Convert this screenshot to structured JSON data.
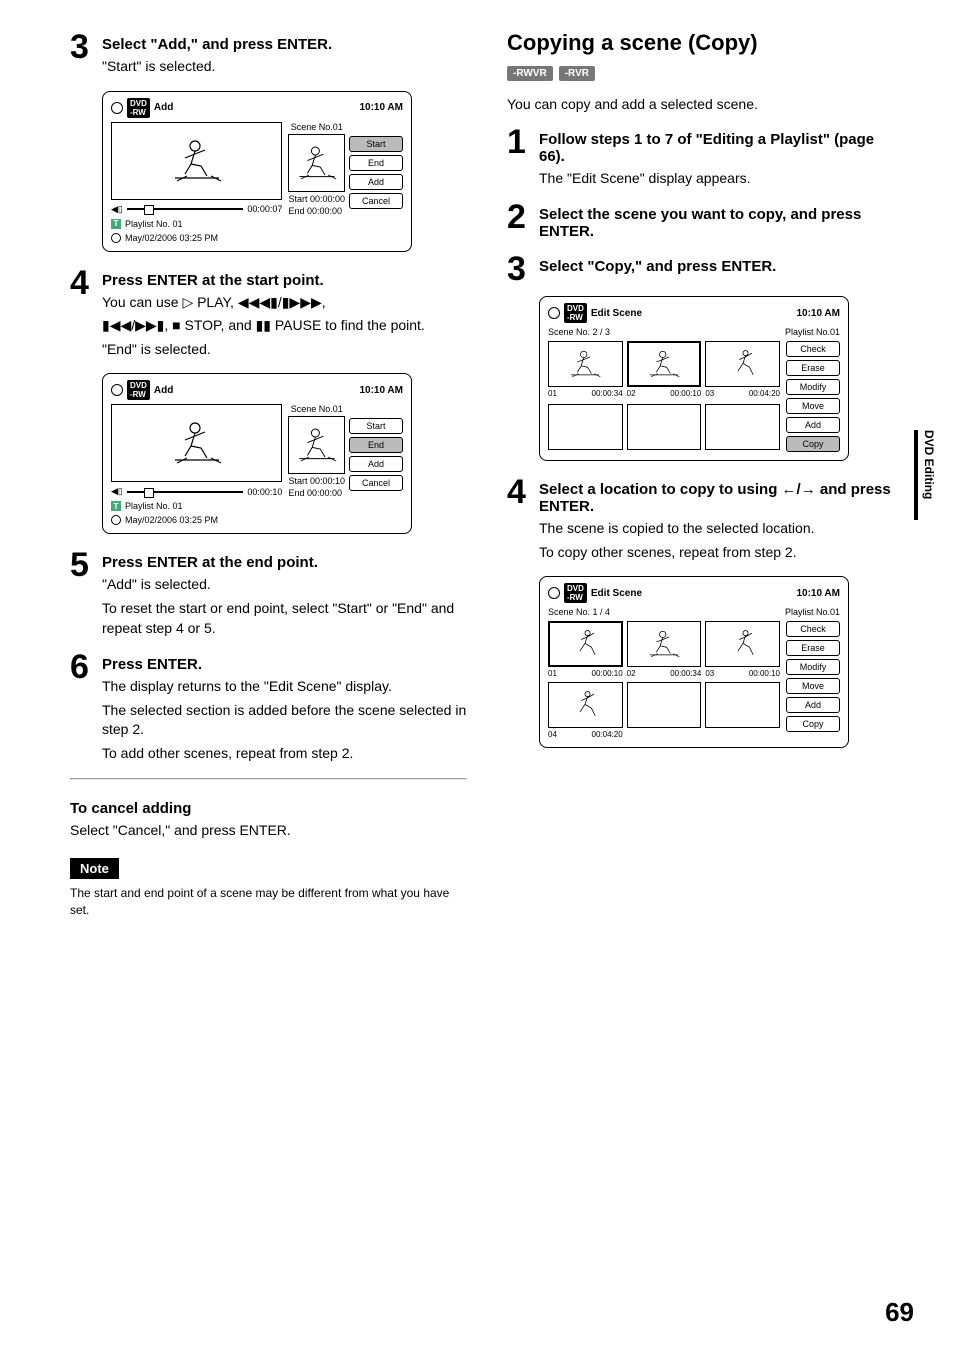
{
  "page_number": "69",
  "side_tab": "DVD Editing",
  "left": {
    "step3": {
      "title": "Select \"Add,\" and press ENTER.",
      "text": "\"Start\" is selected."
    },
    "osd1": {
      "title": "Add",
      "time": "10:10 AM",
      "scene_label": "Scene No.01",
      "start_label": "Start 00:00:00",
      "end_label": "End   00:00:00",
      "slider_time": "00:00:07",
      "playlist": "Playlist No. 01",
      "date": "May/02/2006  03:25  PM",
      "btn_start": "Start",
      "btn_end": "End",
      "btn_add": "Add",
      "btn_cancel": "Cancel"
    },
    "step4": {
      "title": "Press ENTER at the start point.",
      "line1": "You can use ▷ PLAY, ◀◀◀▮/▮▶▶▶,",
      "line2": "▮◀◀/▶▶▮, ■ STOP, and ▮▮ PAUSE to find the point.",
      "line3": "\"End\" is selected."
    },
    "osd2": {
      "title": "Add",
      "time": "10:10 AM",
      "scene_label": "Scene No.01",
      "start_label": "Start 00:00:10",
      "end_label": "End   00:00:00",
      "slider_time": "00:00:10",
      "playlist": "Playlist No. 01",
      "date": "May/02/2006  03:25  PM",
      "btn_start": "Start",
      "btn_end": "End",
      "btn_add": "Add",
      "btn_cancel": "Cancel"
    },
    "step5": {
      "title": "Press ENTER at the end point.",
      "l1": "\"Add\" is selected.",
      "l2": "To reset the start or end point, select \"Start\" or \"End\" and repeat step 4 or 5."
    },
    "step6": {
      "title": "Press ENTER.",
      "l1": "The display returns to the \"Edit Scene\" display.",
      "l2": "The selected section is added before the scene selected in step 2.",
      "l3": "To add other scenes, repeat from step 2."
    },
    "cancel_h": "To cancel adding",
    "cancel_t": "Select \"Cancel,\" and press ENTER.",
    "note_label": "Note",
    "note_text": "The start and end point of a scene may be different from what you have set."
  },
  "right": {
    "heading": "Copying a scene (Copy)",
    "badge1": "-RWVR",
    "badge2": "-RVR",
    "intro": "You can copy and add a selected scene.",
    "step1": {
      "title": "Follow steps 1 to 7 of \"Editing a Playlist\" (page 66).",
      "text": "The \"Edit Scene\" display appears."
    },
    "step2": {
      "title": "Select the scene you want to copy, and press ENTER."
    },
    "step3": {
      "title": "Select \"Copy,\" and press ENTER."
    },
    "osd3": {
      "title": "Edit Scene",
      "time": "10:10 AM",
      "sub_left": "Scene No. 2 / 3",
      "sub_right": "Playlist No.01",
      "cells": [
        {
          "n": "01",
          "t": "00:00:34"
        },
        {
          "n": "02",
          "t": "00:00:10"
        },
        {
          "n": "03",
          "t": "00:04:20"
        }
      ],
      "btns": [
        "Check",
        "Erase",
        "Modify",
        "Move",
        "Add",
        "Copy"
      ]
    },
    "step4": {
      "title": "Select a location to copy to using ←/→ and press ENTER.",
      "l1": "The scene is copied to the selected location.",
      "l2": "To copy other scenes, repeat from step 2."
    },
    "osd4": {
      "title": "Edit Scene",
      "time": "10:10 AM",
      "sub_left": "Scene No. 1 / 4",
      "sub_right": "Playlist No.01",
      "cells": [
        {
          "n": "01",
          "t": "00:00:10"
        },
        {
          "n": "02",
          "t": "00:00:34"
        },
        {
          "n": "03",
          "t": "00:00:10"
        },
        {
          "n": "04",
          "t": "00:04:20"
        }
      ],
      "btns": [
        "Check",
        "Erase",
        "Modify",
        "Move",
        "Add",
        "Copy"
      ]
    }
  }
}
